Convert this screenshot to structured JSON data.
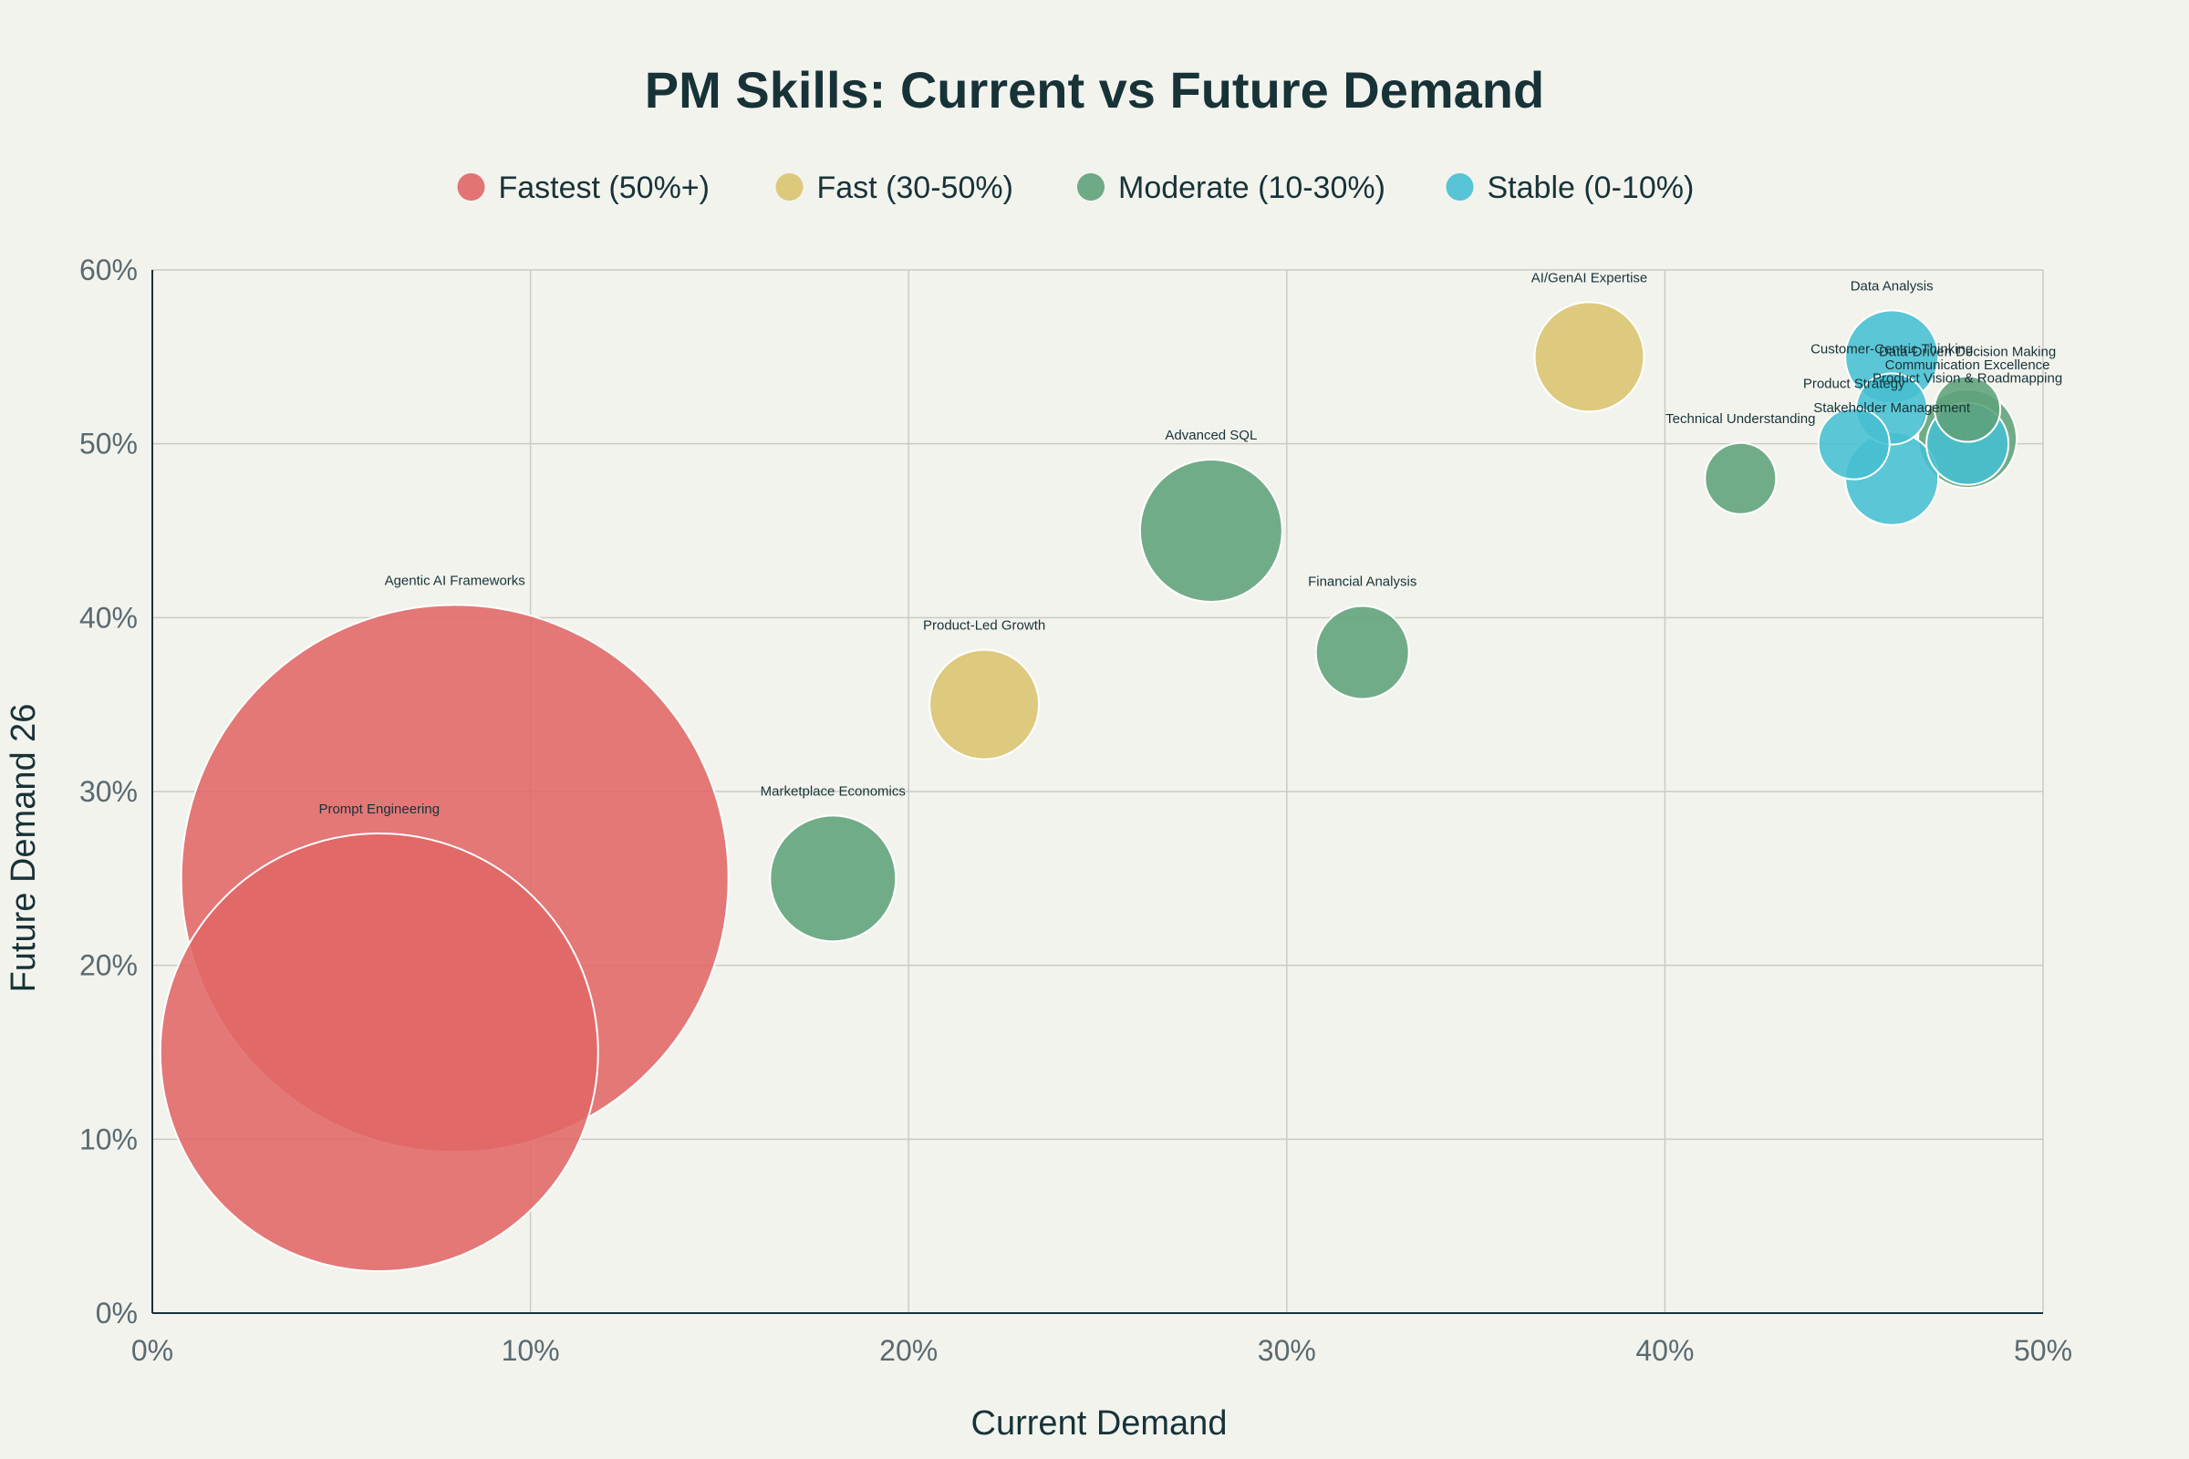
{
  "chart_data": {
    "type": "scatter",
    "title": "PM Skills: Current vs Future Demand",
    "xlabel": "Current Demand",
    "ylabel": "Future Demand 26",
    "xlim": [
      0,
      50
    ],
    "ylim": [
      0,
      60
    ],
    "x_ticks": [
      0,
      10,
      20,
      30,
      40,
      50
    ],
    "y_ticks": [
      0,
      10,
      20,
      30,
      40,
      50,
      60
    ],
    "x_tick_labels": [
      "0%",
      "10%",
      "20%",
      "30%",
      "40%",
      "50%"
    ],
    "y_tick_labels": [
      "0%",
      "10%",
      "20%",
      "30%",
      "40%",
      "50%",
      "60%"
    ],
    "grid": true,
    "legend_position": "top",
    "categories": [
      {
        "key": "fastest",
        "name": "Fastest (50%+)",
        "color": "#e06666"
      },
      {
        "key": "fast",
        "name": "Fast (30-50%)",
        "color": "#d9c46e"
      },
      {
        "key": "moderate",
        "name": "Moderate (10-30%)",
        "color": "#5fa27a"
      },
      {
        "key": "stable",
        "name": "Stable (0-10%)",
        "color": "#45bfd1"
      }
    ],
    "points": [
      {
        "label": "Agentic AI Frameworks",
        "x": 8,
        "y": 25,
        "size": 200,
        "category": "fastest"
      },
      {
        "label": "Prompt Engineering",
        "x": 6,
        "y": 15,
        "size": 160,
        "category": "fastest"
      },
      {
        "label": "AI/GenAI Expertise",
        "x": 38,
        "y": 55,
        "size": 40,
        "category": "fast"
      },
      {
        "label": "Product-Led Growth",
        "x": 22,
        "y": 35,
        "size": 40,
        "category": "fast"
      },
      {
        "label": "Advanced SQL",
        "x": 28,
        "y": 45,
        "size": 52,
        "category": "moderate"
      },
      {
        "label": "Marketplace Economics",
        "x": 18,
        "y": 25,
        "size": 46,
        "category": "moderate"
      },
      {
        "label": "Financial Analysis",
        "x": 32,
        "y": 38,
        "size": 34,
        "category": "moderate"
      },
      {
        "label": "Technical Understanding",
        "x": 42,
        "y": 48,
        "size": 26,
        "category": "moderate"
      },
      {
        "label": "Data-Driven Decision Making",
        "x": 48,
        "y": 52,
        "size": 24,
        "category": "moderate"
      },
      {
        "label": "Communication Excellence",
        "x": 48,
        "y": 50.3,
        "size": 36,
        "category": "moderate"
      },
      {
        "label": "Data Analysis",
        "x": 46,
        "y": 55,
        "size": 34,
        "category": "stable"
      },
      {
        "label": "Customer-Centric Thinking",
        "x": 46,
        "y": 52,
        "size": 26,
        "category": "stable"
      },
      {
        "label": "Product Strategy",
        "x": 45,
        "y": 50,
        "size": 26,
        "category": "stable"
      },
      {
        "label": "Product Vision & Roadmapping",
        "x": 48,
        "y": 50,
        "size": 30,
        "category": "stable"
      },
      {
        "label": "Stakeholder Management",
        "x": 46,
        "y": 48,
        "size": 34,
        "category": "stable"
      }
    ]
  }
}
